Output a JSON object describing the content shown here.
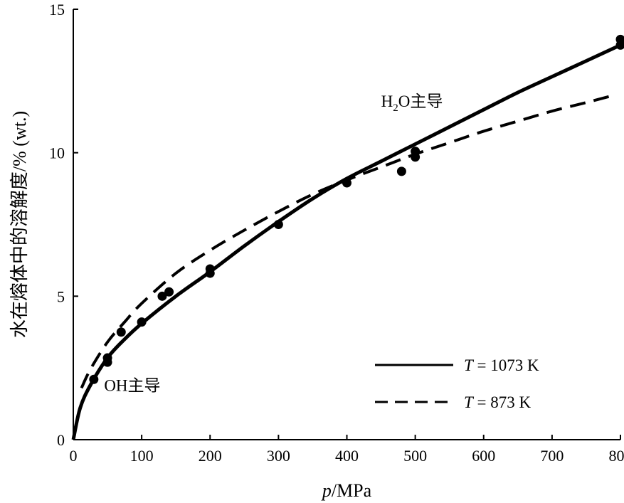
{
  "chart_data": {
    "type": "line",
    "title": "",
    "xlabel": {
      "italic": "p",
      "rest": "/MPa"
    },
    "ylabel": "水在熔体中的溶解度/% (wt.)",
    "xlim": [
      0,
      800
    ],
    "ylim": [
      0,
      15
    ],
    "xticks": [
      0,
      100,
      200,
      300,
      400,
      500,
      600,
      700,
      800
    ],
    "yticks": [
      0,
      5,
      10,
      15
    ],
    "grid": false,
    "legend_position": "bottom-right",
    "series": [
      {
        "name": {
          "italic": "T",
          "rest": " = 1073 K"
        },
        "style": "solid",
        "x": [
          0,
          10,
          25,
          50,
          75,
          100,
          150,
          200,
          250,
          300,
          350,
          400,
          450,
          500,
          550,
          600,
          650,
          700,
          750,
          800
        ],
        "y": [
          0,
          1.1,
          1.9,
          2.85,
          3.5,
          4.05,
          5.0,
          5.85,
          6.75,
          7.6,
          8.4,
          9.1,
          9.7,
          10.3,
          10.9,
          11.5,
          12.1,
          12.65,
          13.2,
          13.75
        ]
      },
      {
        "name": {
          "italic": "T",
          "rest": " = 873 K"
        },
        "style": "dashed",
        "x": [
          12,
          25,
          50,
          75,
          100,
          150,
          200,
          250,
          300,
          350,
          400,
          450,
          500,
          550,
          600,
          650,
          700,
          750,
          790
        ],
        "y": [
          1.8,
          2.45,
          3.4,
          4.1,
          4.75,
          5.8,
          6.6,
          7.3,
          7.95,
          8.55,
          9.05,
          9.5,
          9.95,
          10.35,
          10.75,
          11.1,
          11.45,
          11.75,
          12.0
        ]
      }
    ],
    "points": {
      "x": [
        30,
        50,
        50,
        70,
        100,
        130,
        140,
        200,
        200,
        300,
        400,
        480,
        500,
        500,
        800,
        800
      ],
      "y": [
        2.1,
        2.85,
        2.7,
        3.75,
        4.1,
        5.0,
        5.15,
        5.95,
        5.8,
        7.5,
        8.95,
        9.35,
        10.05,
        9.85,
        13.95,
        13.75
      ]
    },
    "annotations": [
      {
        "text": "OH主导",
        "x": 95,
        "y": 1.9
      },
      {
        "text": "H₂O主导",
        "x": 500,
        "y": 11.8
      }
    ]
  }
}
